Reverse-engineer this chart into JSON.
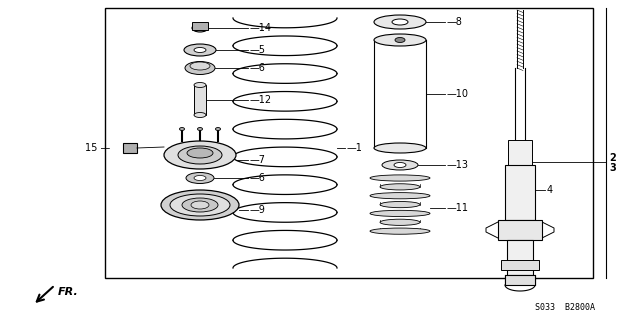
{
  "bg_color": "#ffffff",
  "border_color": "#000000",
  "text_color": "#000000",
  "diagram_code": "S033  B2800A",
  "fr_label": "FR.",
  "lw_main": 0.9,
  "lw_thin": 0.6,
  "label_fs": 7.0
}
